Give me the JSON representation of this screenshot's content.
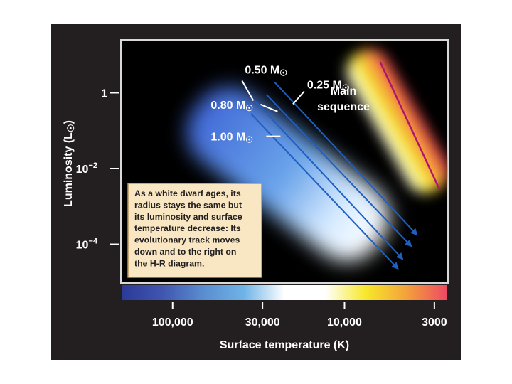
{
  "chart_data": {
    "type": "line",
    "title": "",
    "xlabel": "Surface temperature (K)",
    "ylabel": "Luminosity (L",
    "ylabel_symbol": "☉",
    "ylabel_close": ")",
    "x_scale": "log",
    "x_reversed": true,
    "y_scale": "log",
    "xlim": [
      200000,
      2500
    ],
    "ylim": [
      9.5e-06,
      25
    ],
    "grid": false,
    "legend": "none",
    "x_ticks": [
      {
        "value": 100000,
        "label": "100,000"
      },
      {
        "value": 30000,
        "label": "30,000"
      },
      {
        "value": 10000,
        "label": "10,000"
      },
      {
        "value": 3000,
        "label": "3000"
      }
    ],
    "y_ticks": [
      {
        "value": 1,
        "base": "1",
        "exp": ""
      },
      {
        "value": 0.01,
        "base": "10",
        "exp": "−2"
      },
      {
        "value": 0.0001,
        "base": "10",
        "exp": "−4"
      }
    ],
    "series": [
      {
        "name": "1.00 M☉",
        "x": [
          35000,
          4900
        ],
        "y": [
          0.28,
          2.3e-05
        ]
      },
      {
        "name": "0.80 M☉",
        "x": [
          33000,
          4600
        ],
        "y": [
          0.6,
          4.1e-05
        ]
      },
      {
        "name": "0.50 M☉",
        "x": [
          28500,
          4100
        ],
        "y": [
          0.9,
          9e-05
        ]
      },
      {
        "name": "0.25 M☉",
        "x": [
          25500,
          3800
        ],
        "y": [
          1.9,
          0.00018
        ]
      }
    ],
    "series_labels": [
      {
        "text": "0.50 M",
        "symbol": "☉",
        "x": 38000,
        "y": 3.2
      },
      {
        "text": "0.25 M",
        "symbol": "☉",
        "x": 16500,
        "y": 1.3
      },
      {
        "text": "0.80 M",
        "symbol": "☉",
        "x": 60000,
        "y": 0.38
      },
      {
        "text": "1.00 M",
        "symbol": "☉",
        "x": 60000,
        "y": 0.055
      }
    ],
    "main_sequence": {
      "label_lines": [
        "Main",
        "sequence"
      ],
      "x": [
        6200,
        2800
      ],
      "y": [
        6.5,
        0.0028
      ],
      "color": "#b0146e"
    },
    "annotation": {
      "lines": [
        "As a white dwarf ages, its",
        "radius stays the same but",
        "its luminosity and surface",
        "temperature decrease: Its",
        "evolutionary track moves",
        "down and to the right on",
        "the H-R diagram."
      ]
    },
    "colorbar_stops": [
      "#2b3a97",
      "#4156b0",
      "#5a8dd0",
      "#6fb3e6",
      "#ffffff",
      "#ffffff",
      "#f7e82a",
      "#f3a33b",
      "#ee4a63"
    ]
  }
}
